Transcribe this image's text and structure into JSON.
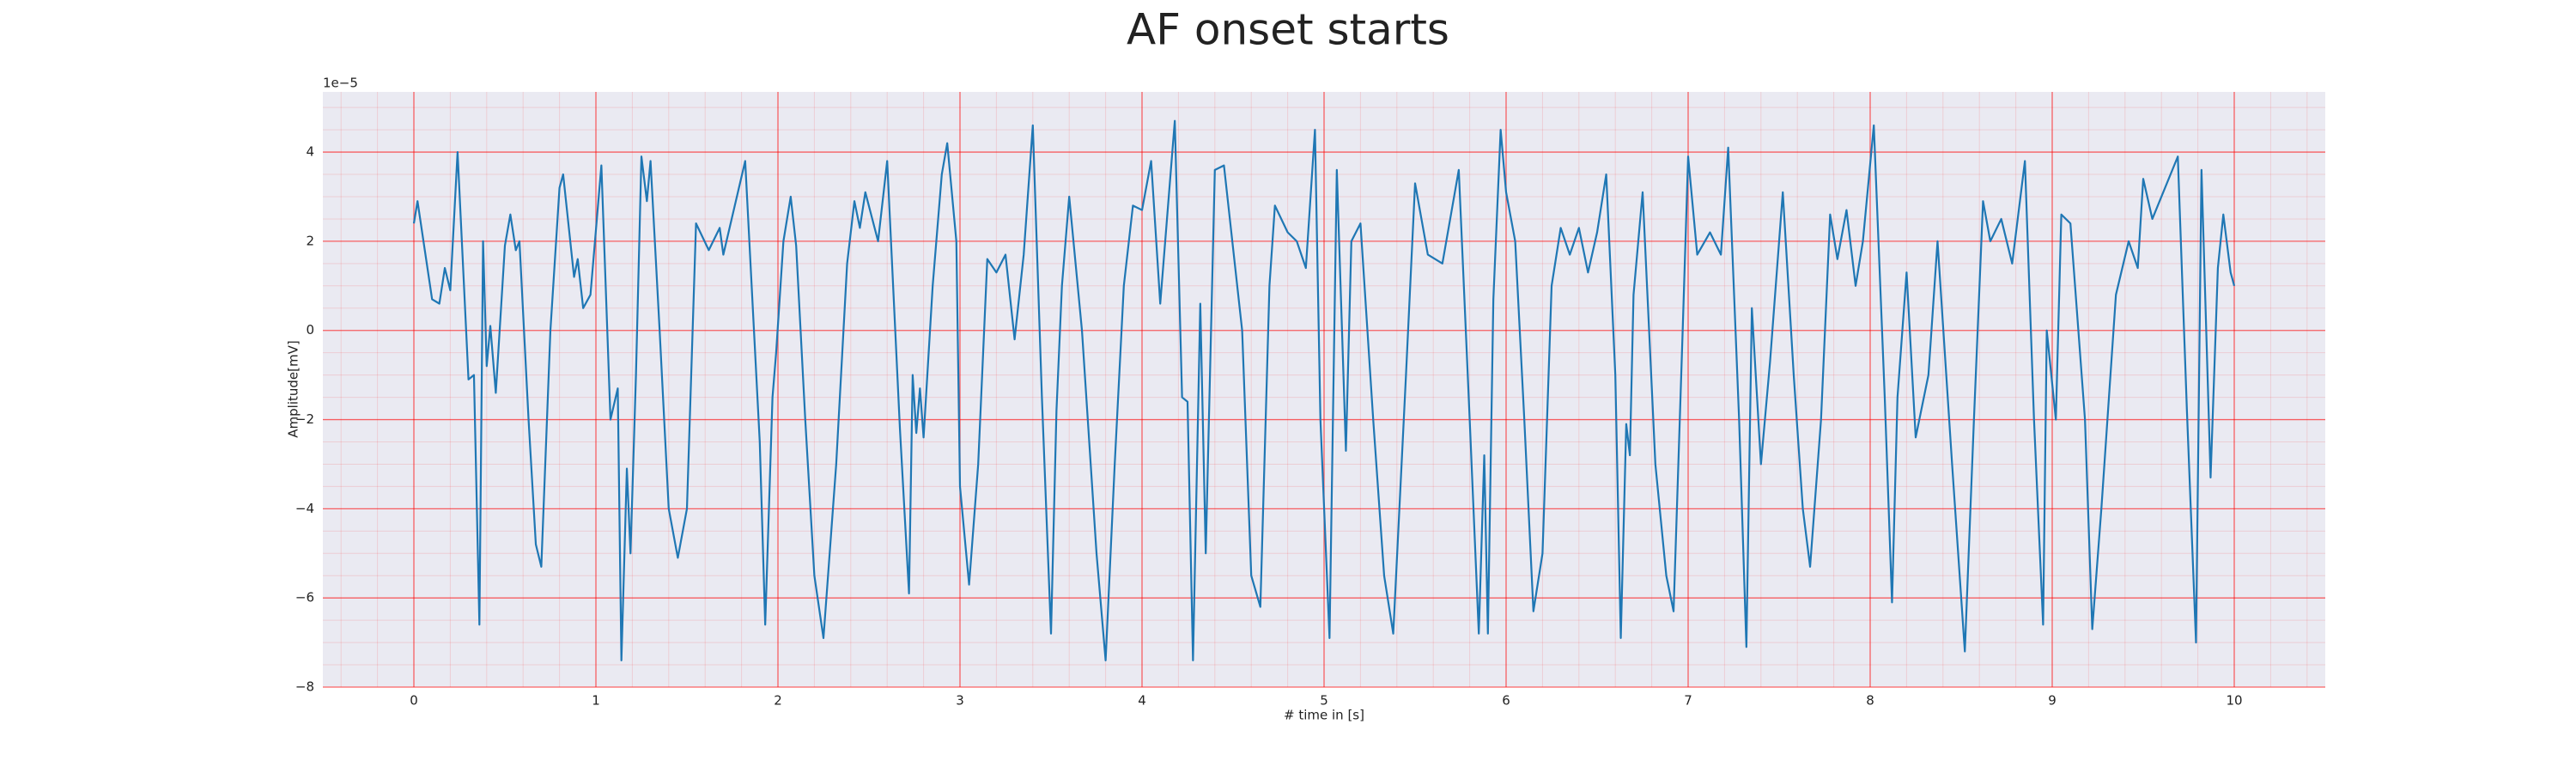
{
  "chart_data": {
    "type": "line",
    "title": "AF onset starts",
    "xlabel": "# time in [s]",
    "ylabel": "Amplitude[mV]",
    "y_offset_label": "1e−5",
    "x": [
      0,
      0.02,
      0.06,
      0.1,
      0.14,
      0.17,
      0.2,
      0.24,
      0.3,
      0.33,
      0.36,
      0.38,
      0.4,
      0.42,
      0.45,
      0.5,
      0.53,
      0.56,
      0.58,
      0.63,
      0.67,
      0.7,
      0.75,
      0.8,
      0.82,
      0.88,
      0.9,
      0.93,
      0.97,
      1.03,
      1.08,
      1.12,
      1.14,
      1.17,
      1.19,
      1.22,
      1.25,
      1.28,
      1.3,
      1.35,
      1.4,
      1.45,
      1.5,
      1.55,
      1.62,
      1.68,
      1.7,
      1.82,
      1.9,
      1.93,
      1.97,
      1.99,
      2.03,
      2.07,
      2.1,
      2.15,
      2.2,
      2.25,
      2.32,
      2.38,
      2.42,
      2.45,
      2.48,
      2.55,
      2.6,
      2.67,
      2.72,
      2.74,
      2.76,
      2.78,
      2.8,
      2.85,
      2.9,
      2.93,
      2.98,
      3.0,
      3.05,
      3.1,
      3.15,
      3.2,
      3.25,
      3.3,
      3.35,
      3.4,
      3.45,
      3.5,
      3.53,
      3.56,
      3.6,
      3.67,
      3.75,
      3.8,
      3.85,
      3.9,
      3.95,
      4.0,
      4.05,
      4.1,
      4.18,
      4.22,
      4.25,
      4.28,
      4.32,
      4.35,
      4.4,
      4.45,
      4.55,
      4.6,
      4.65,
      4.7,
      4.73,
      4.8,
      4.85,
      4.9,
      4.95,
      4.98,
      5.03,
      5.07,
      5.12,
      5.15,
      5.2,
      5.27,
      5.33,
      5.38,
      5.45,
      5.5,
      5.57,
      5.65,
      5.74,
      5.8,
      5.85,
      5.88,
      5.9,
      5.93,
      5.97,
      6.0,
      6.05,
      6.1,
      6.15,
      6.2,
      6.25,
      6.3,
      6.35,
      6.4,
      6.45,
      6.5,
      6.55,
      6.6,
      6.63,
      6.66,
      6.68,
      6.7,
      6.75,
      6.82,
      6.88,
      6.92,
      6.97,
      7.0,
      7.05,
      7.12,
      7.18,
      7.22,
      7.28,
      7.32,
      7.35,
      7.4,
      7.45,
      7.52,
      7.58,
      7.63,
      7.67,
      7.73,
      7.78,
      7.82,
      7.87,
      7.92,
      7.96,
      8.02,
      8.08,
      8.12,
      8.15,
      8.2,
      8.25,
      8.32,
      8.37,
      8.45,
      8.52,
      8.57,
      8.62,
      8.66,
      8.72,
      8.78,
      8.85,
      8.9,
      8.95,
      8.97,
      9.02,
      9.05,
      9.1,
      9.18,
      9.22,
      9.27,
      9.35,
      9.42,
      9.47,
      9.5,
      9.55,
      9.69,
      9.74,
      9.79,
      9.82,
      9.87,
      9.91,
      9.94,
      9.98,
      10
    ],
    "series": [
      {
        "color": "#1f77b4",
        "values": [
          2.4,
          2.9,
          1.8,
          0.7,
          0.6,
          1.4,
          0.9,
          4.0,
          -1.1,
          -1.0,
          -6.6,
          2.0,
          -0.8,
          0.1,
          -1.4,
          1.9,
          2.6,
          1.8,
          2.0,
          -2.0,
          -4.8,
          -5.3,
          0,
          3.2,
          3.5,
          1.2,
          1.6,
          0.5,
          0.8,
          3.7,
          -2.0,
          -1.3,
          -7.4,
          -3.1,
          -5.0,
          -1.0,
          3.9,
          2.9,
          3.8,
          0,
          -4.0,
          -5.1,
          -4.0,
          2.4,
          1.8,
          2.3,
          1.7,
          3.8,
          -2.5,
          -6.6,
          -1.5,
          -0.5,
          2.0,
          3.0,
          1.9,
          -2.0,
          -5.5,
          -6.9,
          -3.0,
          1.5,
          2.9,
          2.3,
          3.1,
          2.0,
          3.8,
          -2.2,
          -5.9,
          -1.0,
          -2.3,
          -1.3,
          -2.4,
          1.0,
          3.5,
          4.2,
          2.0,
          -3.5,
          -5.7,
          -3.0,
          1.6,
          1.3,
          1.7,
          -0.2,
          1.7,
          4.6,
          -1.5,
          -6.8,
          -1.8,
          1.0,
          3.0,
          0,
          -5.0,
          -7.4,
          -3.0,
          1.0,
          2.8,
          2.7,
          3.8,
          0.6,
          4.7,
          -1.5,
          -1.6,
          -7.4,
          0.6,
          -5.0,
          3.6,
          3.7,
          0,
          -5.5,
          -6.2,
          1.0,
          2.8,
          2.2,
          2.0,
          1.4,
          4.5,
          -2.0,
          -6.9,
          3.6,
          -2.7,
          2.0,
          2.4,
          -2.0,
          -5.5,
          -6.8,
          -1.0,
          3.3,
          1.7,
          1.5,
          3.6,
          -2.0,
          -6.8,
          -2.8,
          -6.8,
          0.7,
          4.5,
          3.1,
          2.0,
          -2.0,
          -6.3,
          -5.0,
          1.0,
          2.3,
          1.7,
          2.3,
          1.3,
          2.2,
          3.5,
          -1.0,
          -6.9,
          -2.1,
          -2.8,
          0.8,
          3.1,
          -3.0,
          -5.5,
          -6.3,
          0,
          3.9,
          1.7,
          2.2,
          1.7,
          4.1,
          -2.0,
          -7.1,
          0.5,
          -3.0,
          -0.7,
          3.1,
          -1.0,
          -4.0,
          -5.3,
          -2.0,
          2.6,
          1.6,
          2.7,
          1.0,
          2.0,
          4.6,
          -1.5,
          -6.1,
          -1.5,
          1.3,
          -2.4,
          -1.0,
          2.0,
          -3.0,
          -7.2,
          -2.0,
          2.9,
          2.0,
          2.5,
          1.5,
          3.8,
          -2.0,
          -6.6,
          0,
          -2.0,
          2.6,
          2.4,
          -2.0,
          -6.7,
          -4.0,
          0.8,
          2.0,
          1.4,
          3.4,
          2.5,
          3.9,
          -1.8,
          -7.0,
          3.6,
          -3.3,
          1.4,
          2.6,
          1.3,
          1.0
        ]
      }
    ],
    "xlim": [
      -0.5,
      10.5
    ],
    "ylim": [
      -8,
      5.35
    ],
    "xticks": [
      0,
      1,
      2,
      3,
      4,
      5,
      6,
      7,
      8,
      9,
      10
    ],
    "yticks": [
      {
        "value": -8,
        "label": "−8"
      },
      {
        "value": -6,
        "label": "−6"
      },
      {
        "value": -4,
        "label": "−4"
      },
      {
        "value": -2,
        "label": "−2"
      },
      0,
      2,
      4
    ],
    "grid": true,
    "grid_color": "#ff0000",
    "minor_grid": {
      "x": 0.2,
      "y": 0.5
    },
    "background": "#eaeaf2"
  }
}
